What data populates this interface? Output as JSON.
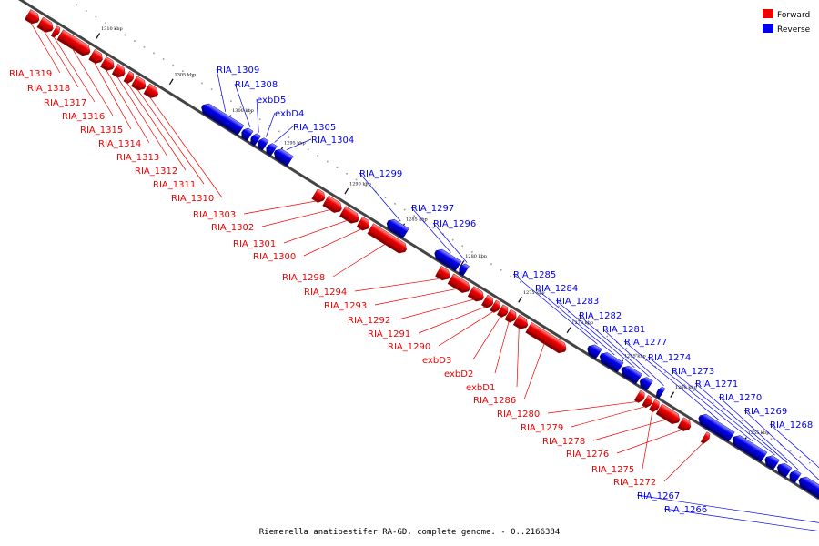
{
  "caption": "Riemerella anatipestifer RA-GD, complete genome. - 0..2166384",
  "colors": {
    "forward": "#ee0000",
    "reverse": "#0000ee",
    "forward_light": "#ff9c9c",
    "reverse_light": "#9c9cff",
    "backbone": "#555555"
  },
  "legend": [
    {
      "label": "Forward",
      "color": "#ee0000"
    },
    {
      "label": "Reverse",
      "color": "#0000ee"
    }
  ],
  "ticks": [
    "1310 kbp",
    "1305 kbp",
    "1300 kbp",
    "1295 kbp",
    "1290 kbp",
    "1285 kbp",
    "1280 kbp",
    "1275 kbp",
    "1270 kbp",
    "1265 kbp",
    "1260 kbp",
    "1255 kbp"
  ],
  "genes": [
    {
      "label": "RIA_1319",
      "strand": "forward"
    },
    {
      "label": "RIA_1318",
      "strand": "forward"
    },
    {
      "label": "RIA_1317",
      "strand": "forward"
    },
    {
      "label": "RIA_1316",
      "strand": "forward"
    },
    {
      "label": "RIA_1315",
      "strand": "forward"
    },
    {
      "label": "RIA_1314",
      "strand": "forward"
    },
    {
      "label": "RIA_1313",
      "strand": "forward"
    },
    {
      "label": "RIA_1312",
      "strand": "forward"
    },
    {
      "label": "RIA_1311",
      "strand": "forward"
    },
    {
      "label": "RIA_1310",
      "strand": "forward"
    },
    {
      "label": "RIA_1309",
      "strand": "reverse"
    },
    {
      "label": "RIA_1308",
      "strand": "reverse"
    },
    {
      "label": "exbD5",
      "strand": "reverse"
    },
    {
      "label": "exbD4",
      "strand": "reverse"
    },
    {
      "label": "RIA_1305",
      "strand": "reverse"
    },
    {
      "label": "RIA_1304",
      "strand": "reverse"
    },
    {
      "label": "RIA_1303",
      "strand": "forward"
    },
    {
      "label": "RIA_1302",
      "strand": "forward"
    },
    {
      "label": "RIA_1301",
      "strand": "forward"
    },
    {
      "label": "RIA_1300",
      "strand": "forward"
    },
    {
      "label": "RIA_1299",
      "strand": "reverse"
    },
    {
      "label": "RIA_1298",
      "strand": "forward"
    },
    {
      "label": "RIA_1297",
      "strand": "reverse"
    },
    {
      "label": "RIA_1296",
      "strand": "reverse"
    },
    {
      "label": "RIA_1294",
      "strand": "forward"
    },
    {
      "label": "RIA_1293",
      "strand": "forward"
    },
    {
      "label": "RIA_1292",
      "strand": "forward"
    },
    {
      "label": "RIA_1291",
      "strand": "forward"
    },
    {
      "label": "RIA_1290",
      "strand": "forward"
    },
    {
      "label": "exbD3",
      "strand": "forward"
    },
    {
      "label": "exbD2",
      "strand": "forward"
    },
    {
      "label": "exbD1",
      "strand": "forward"
    },
    {
      "label": "RIA_1286",
      "strand": "forward"
    },
    {
      "label": "RIA_1285",
      "strand": "reverse"
    },
    {
      "label": "RIA_1284",
      "strand": "reverse"
    },
    {
      "label": "RIA_1283",
      "strand": "reverse"
    },
    {
      "label": "RIA_1282",
      "strand": "reverse"
    },
    {
      "label": "RIA_1281",
      "strand": "reverse"
    },
    {
      "label": "RIA_1280",
      "strand": "forward"
    },
    {
      "label": "RIA_1279",
      "strand": "forward"
    },
    {
      "label": "RIA_1278",
      "strand": "forward"
    },
    {
      "label": "RIA_1277",
      "strand": "reverse"
    },
    {
      "label": "RIA_1276",
      "strand": "forward"
    },
    {
      "label": "RIA_1275",
      "strand": "forward"
    },
    {
      "label": "RIA_1274",
      "strand": "reverse"
    },
    {
      "label": "RIA_1273",
      "strand": "reverse"
    },
    {
      "label": "RIA_1272",
      "strand": "forward"
    },
    {
      "label": "RIA_1271",
      "strand": "reverse"
    },
    {
      "label": "RIA_1270",
      "strand": "reverse"
    },
    {
      "label": "RIA_1269",
      "strand": "reverse"
    },
    {
      "label": "RIA_1268",
      "strand": "reverse"
    },
    {
      "label": "RIA_1267",
      "strand": "reverse"
    },
    {
      "label": "RIA_1266",
      "strand": "reverse"
    }
  ]
}
